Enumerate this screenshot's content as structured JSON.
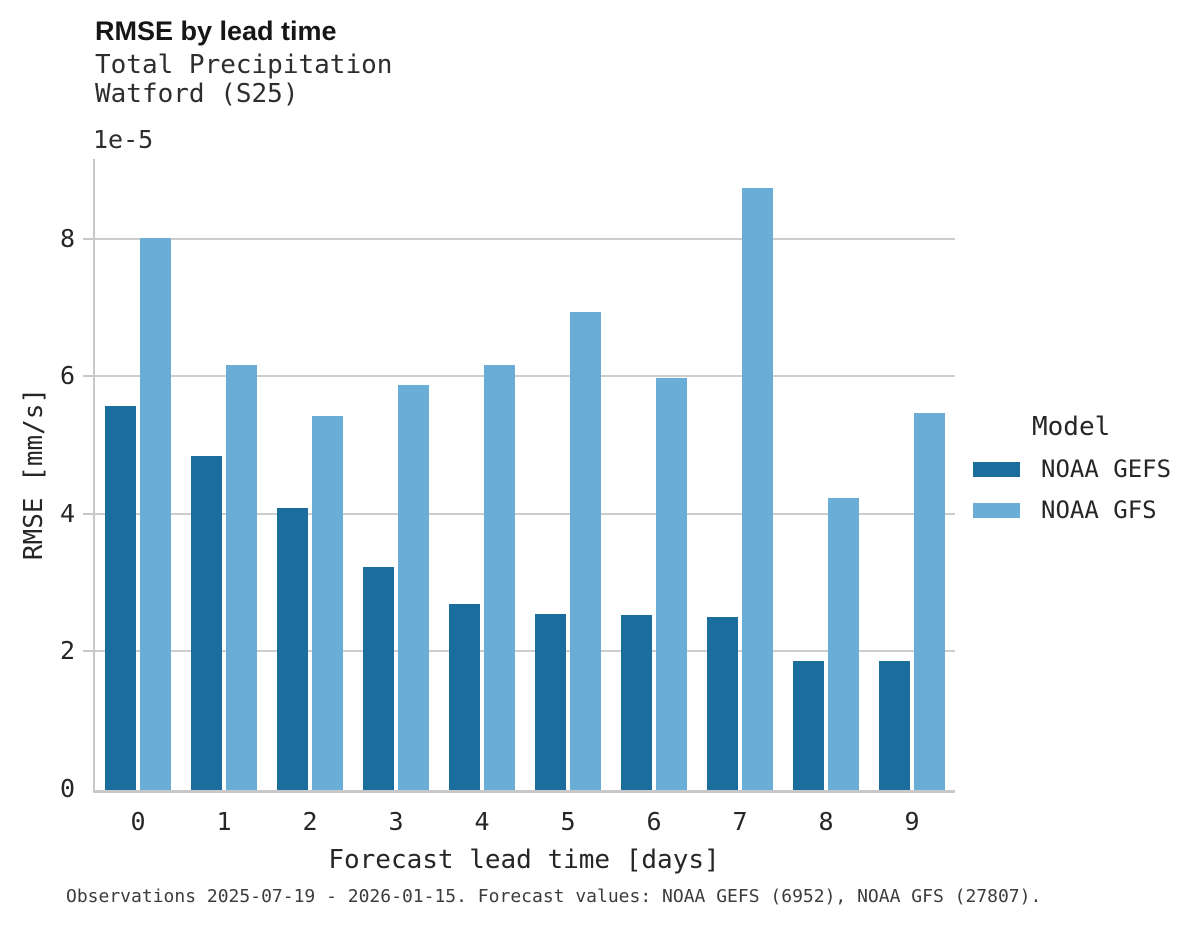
{
  "chart_data": {
    "type": "bar",
    "title": "RMSE by lead time",
    "subtitle_line1": "Total Precipitation",
    "subtitle_line2": "Watford (S25)",
    "y_offset_label": "1e-5",
    "xlabel": "Forecast lead time [days]",
    "ylabel": "RMSE [mm/s]",
    "legend_title": "Model",
    "legend_position": "right",
    "grid": "horizontal gridlines at yticks, no top/right spines",
    "categories": [
      "0",
      "1",
      "2",
      "3",
      "4",
      "5",
      "6",
      "7",
      "8",
      "9"
    ],
    "series": [
      {
        "name": "NOAA GEFS",
        "color": "#1B6D9E",
        "values": [
          5.58,
          4.86,
          4.1,
          3.24,
          2.7,
          2.56,
          2.55,
          2.52,
          1.88,
          1.88
        ]
      },
      {
        "name": "NOAA GFS",
        "color": "#6AAED8",
        "values": [
          8.02,
          6.18,
          5.44,
          5.88,
          6.17,
          6.95,
          5.99,
          8.75,
          4.25,
          5.48
        ]
      }
    ],
    "value_scale": "values are in units of 1e-5 mm/s",
    "yticks": [
      0,
      2,
      4,
      6,
      8
    ],
    "ylim": [
      0,
      9.17
    ],
    "footnote": "Observations 2025-07-19 - 2026-01-15. Forecast values: NOAA GEFS (6952), NOAA GFS (27807)."
  },
  "colors": {
    "gridline": "#cdcdcd",
    "spine": "#c8c8c8",
    "text": "#262626"
  }
}
